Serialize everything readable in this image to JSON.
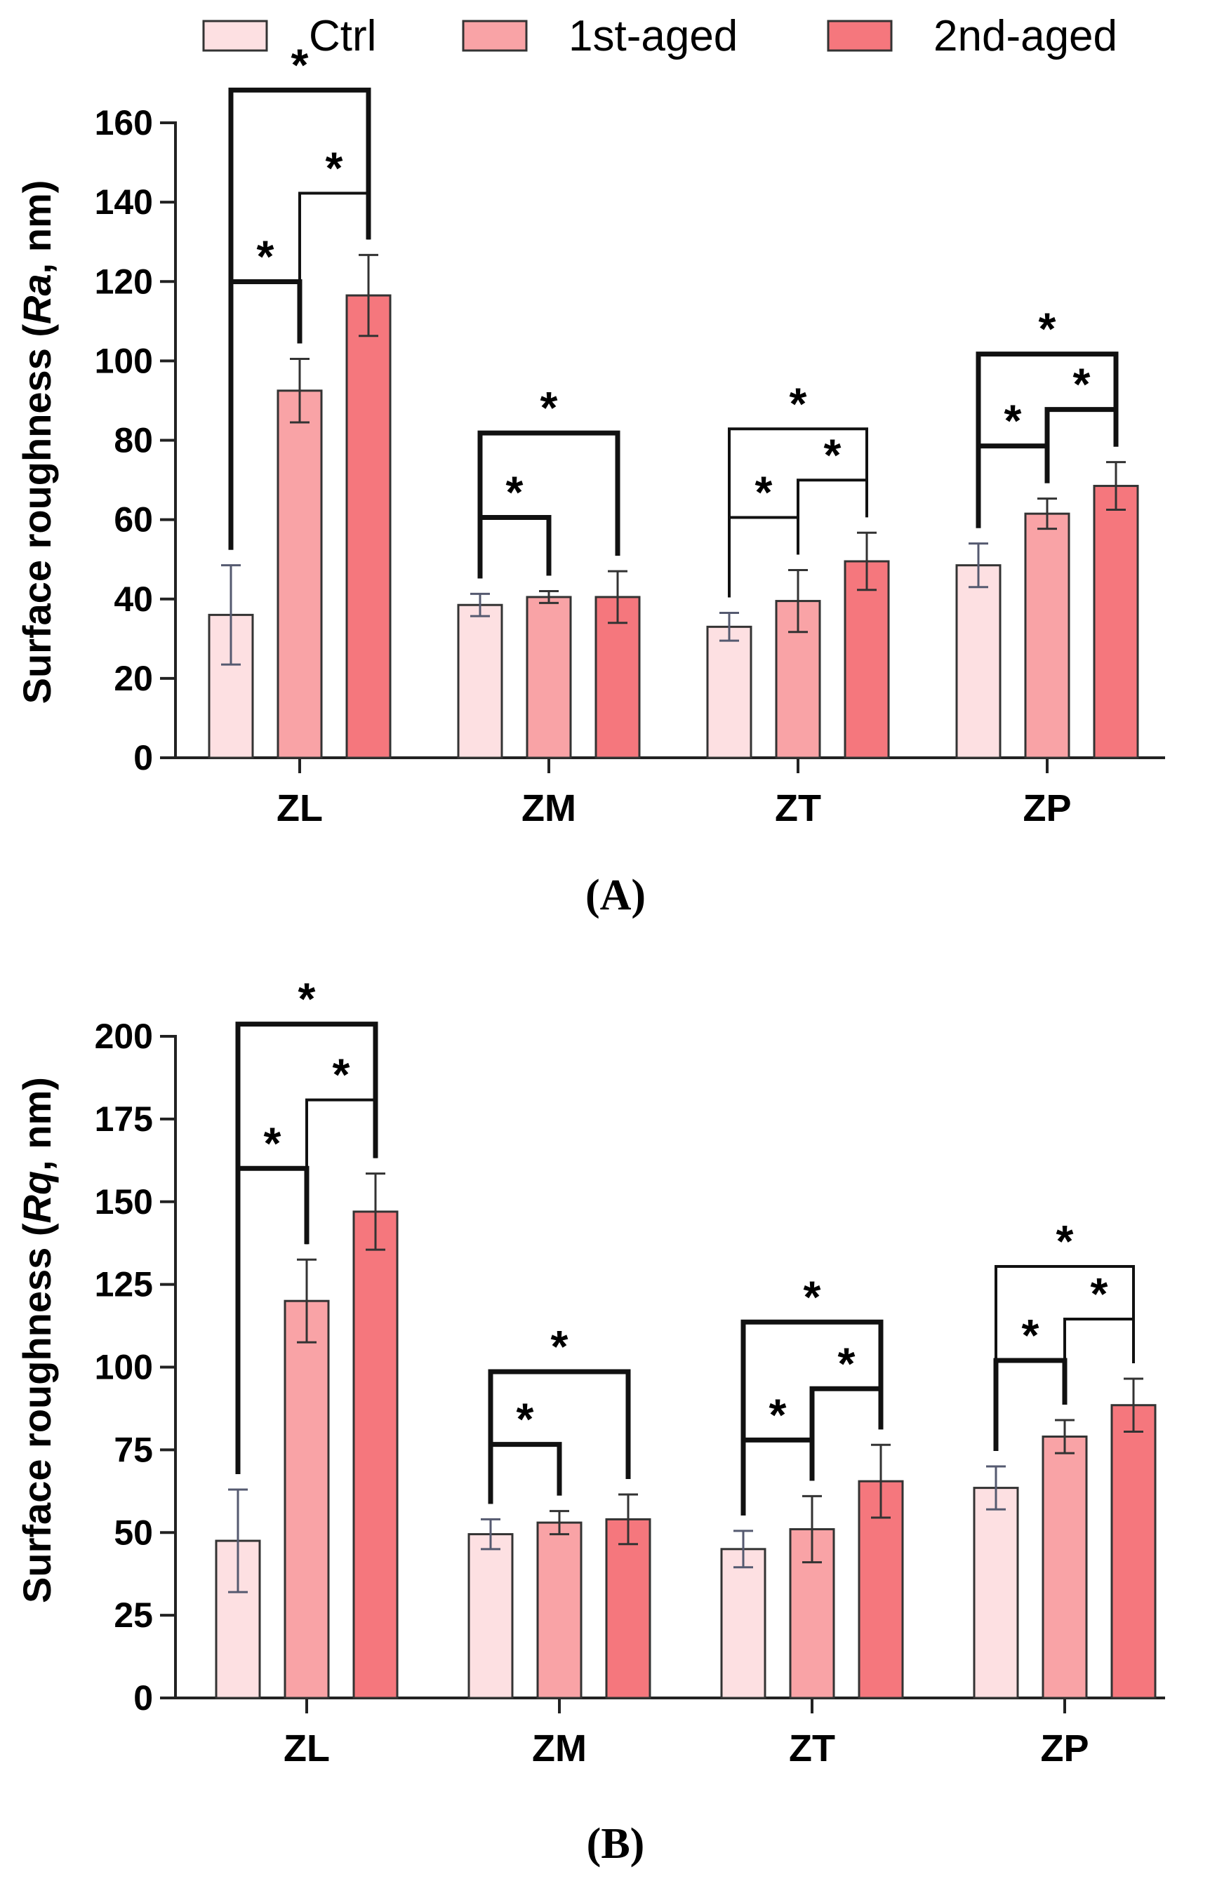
{
  "legend": {
    "entries": [
      {
        "label": "Ctrl",
        "color": "#fde0e2"
      },
      {
        "label": "1st-aged",
        "color": "#f9a3a6"
      },
      {
        "label": "2nd-aged",
        "color": "#f5777d"
      }
    ]
  },
  "chart_data": [
    {
      "type": "bar",
      "panel": "A",
      "panel_label": "(A)",
      "ylabel_prefix": "Surface roughness (",
      "ylabel_italic": "Ra",
      "ylabel_suffix": ", nm)",
      "categories": [
        "ZL",
        "ZM",
        "ZT",
        "ZP"
      ],
      "ylim": [
        0,
        160
      ],
      "yticks": [
        0,
        20,
        40,
        60,
        80,
        100,
        120,
        140,
        160
      ],
      "series": [
        {
          "name": "Ctrl",
          "values": [
            36,
            38.5,
            33,
            48.5
          ],
          "errors": [
            12.5,
            2.8,
            3.5,
            5.5
          ]
        },
        {
          "name": "1st-aged",
          "values": [
            92.5,
            40.5,
            39.5,
            61.5
          ],
          "errors": [
            8,
            1.5,
            7.8,
            3.8
          ]
        },
        {
          "name": "2nd-aged",
          "values": [
            116.5,
            40.5,
            49.5,
            68.5
          ],
          "errors": [
            10.2,
            6.5,
            7.2,
            6
          ]
        }
      ],
      "significance": [
        {
          "category": "ZL",
          "from": "Ctrl",
          "to": "1st-aged",
          "label": "*"
        },
        {
          "category": "ZL",
          "from": "1st-aged",
          "to": "2nd-aged",
          "label": "*"
        },
        {
          "category": "ZL",
          "from": "Ctrl",
          "to": "2nd-aged",
          "label": "*"
        },
        {
          "category": "ZM",
          "from": "Ctrl",
          "to": "1st-aged",
          "label": "*"
        },
        {
          "category": "ZM",
          "from": "Ctrl",
          "to": "2nd-aged",
          "label": "*"
        },
        {
          "category": "ZT",
          "from": "Ctrl",
          "to": "1st-aged",
          "label": "*"
        },
        {
          "category": "ZT",
          "from": "1st-aged",
          "to": "2nd-aged",
          "label": "*"
        },
        {
          "category": "ZT",
          "from": "Ctrl",
          "to": "2nd-aged",
          "label": "*"
        },
        {
          "category": "ZP",
          "from": "Ctrl",
          "to": "1st-aged",
          "label": "*"
        },
        {
          "category": "ZP",
          "from": "1st-aged",
          "to": "2nd-aged",
          "label": "*"
        },
        {
          "category": "ZP",
          "from": "Ctrl",
          "to": "2nd-aged",
          "label": "*"
        }
      ]
    },
    {
      "type": "bar",
      "panel": "B",
      "panel_label": "(B)",
      "ylabel_prefix": "Surface roughness (",
      "ylabel_italic": "Rq",
      "ylabel_suffix": ", nm)",
      "categories": [
        "ZL",
        "ZM",
        "ZT",
        "ZP"
      ],
      "ylim": [
        0,
        200
      ],
      "yticks": [
        0,
        25,
        50,
        75,
        100,
        125,
        150,
        175,
        200
      ],
      "series": [
        {
          "name": "Ctrl",
          "values": [
            47.5,
            49.5,
            45,
            63.5
          ],
          "errors": [
            15.5,
            4.5,
            5.5,
            6.5
          ]
        },
        {
          "name": "1st-aged",
          "values": [
            120,
            53,
            51,
            79
          ],
          "errors": [
            12.5,
            3.5,
            10,
            5
          ]
        },
        {
          "name": "2nd-aged",
          "values": [
            147,
            54,
            65.5,
            88.5
          ],
          "errors": [
            11.5,
            7.5,
            11,
            8
          ]
        }
      ],
      "significance": [
        {
          "category": "ZL",
          "from": "Ctrl",
          "to": "1st-aged",
          "label": "*"
        },
        {
          "category": "ZL",
          "from": "1st-aged",
          "to": "2nd-aged",
          "label": "*"
        },
        {
          "category": "ZL",
          "from": "Ctrl",
          "to": "2nd-aged",
          "label": "*"
        },
        {
          "category": "ZM",
          "from": "Ctrl",
          "to": "1st-aged",
          "label": "*"
        },
        {
          "category": "ZM",
          "from": "Ctrl",
          "to": "2nd-aged",
          "label": "*"
        },
        {
          "category": "ZT",
          "from": "Ctrl",
          "to": "1st-aged",
          "label": "*"
        },
        {
          "category": "ZT",
          "from": "1st-aged",
          "to": "2nd-aged",
          "label": "*"
        },
        {
          "category": "ZT",
          "from": "Ctrl",
          "to": "2nd-aged",
          "label": "*"
        },
        {
          "category": "ZP",
          "from": "Ctrl",
          "to": "1st-aged",
          "label": "*"
        },
        {
          "category": "ZP",
          "from": "1st-aged",
          "to": "2nd-aged",
          "label": "*"
        },
        {
          "category": "ZP",
          "from": "Ctrl",
          "to": "2nd-aged",
          "label": "*"
        }
      ]
    }
  ]
}
